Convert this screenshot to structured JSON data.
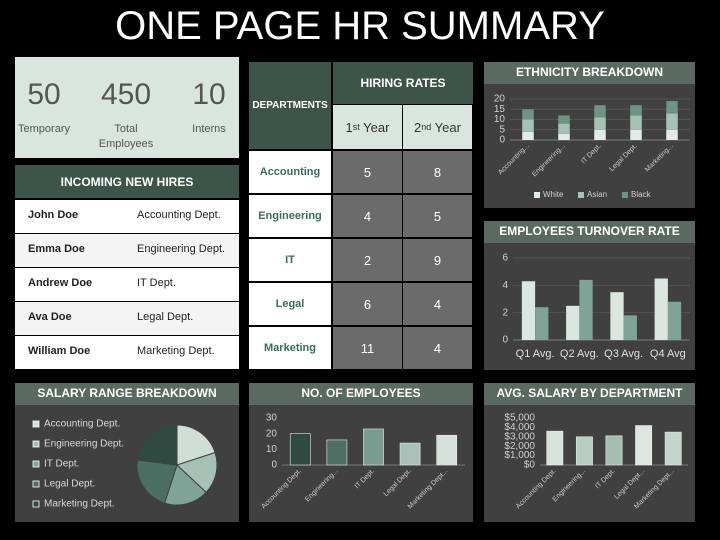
{
  "title": "ONE PAGE HR SUMMARY",
  "stats": [
    {
      "value": 50,
      "label": "Temporary"
    },
    {
      "value": 450,
      "label": "Total Employees"
    },
    {
      "value": 10,
      "label": "Interns"
    }
  ],
  "new_hires": {
    "title": "INCOMING NEW HIRES",
    "rows": [
      [
        "John Doe",
        "Accounting Dept."
      ],
      [
        "Emma Doe",
        "Engineering Dept."
      ],
      [
        "Andrew Doe",
        "IT Dept."
      ],
      [
        "Ava Doe",
        "Legal Dept."
      ],
      [
        "William Doe",
        "Marketing Dept."
      ]
    ]
  },
  "hiring_rates": {
    "title": "HIRING RATES",
    "row_header": "DEPARTMENTS",
    "columns": [
      {
        "base": "1",
        "sup": "st",
        "rest": " Year"
      },
      {
        "base": "2",
        "sup": "nd",
        "rest": " Year"
      }
    ],
    "rows": [
      {
        "department": "Accounting",
        "values": [
          5,
          8
        ]
      },
      {
        "department": "Engineering",
        "values": [
          4,
          5
        ]
      },
      {
        "department": "IT",
        "values": [
          2,
          9
        ]
      },
      {
        "department": "Legal",
        "values": [
          6,
          4
        ]
      },
      {
        "department": "Marketing",
        "values": [
          11,
          4
        ]
      }
    ]
  },
  "chart_data": [
    {
      "type": "bar",
      "title": "ETHNICITY BREAKDOWN",
      "stacked": true,
      "grid": true,
      "legend": "bottom",
      "categories": [
        "Accounting...",
        "Engineering...",
        "IT Dept.",
        "Legal Dept.",
        "Marketing..."
      ],
      "series": [
        {
          "name": "White",
          "color": "#e3ebe7",
          "values": [
            4,
            3,
            5,
            5,
            5
          ]
        },
        {
          "name": "Asian",
          "color": "#a6c2b6",
          "values": [
            6,
            5,
            6,
            7,
            8
          ]
        },
        {
          "name": "Black",
          "color": "#6f9484",
          "values": [
            5,
            4,
            6,
            5,
            6
          ]
        }
      ],
      "ylim": [
        0,
        20
      ],
      "yticks": [
        0,
        5,
        10,
        15,
        20
      ]
    },
    {
      "type": "bar",
      "title": "EMPLOYEES TURNOVER RATE",
      "grid": true,
      "categories": [
        "Q1 Avg.",
        "Q2 Avg.",
        "Q3 Avg.",
        "Q4 Avg"
      ],
      "series": [
        {
          "color": "#dbe6e0",
          "values": [
            4.3,
            2.5,
            3.5,
            4.5
          ]
        },
        {
          "color": "#7fa397",
          "values": [
            2.4,
            4.4,
            1.8,
            2.8
          ]
        }
      ],
      "ylim": [
        0,
        6
      ],
      "yticks": [
        0,
        2,
        4,
        6
      ]
    },
    {
      "type": "pie",
      "title": "SALARY RANGE BREAKDOWN",
      "legend": "left",
      "categories": [
        "Accounting Dept.",
        "Engineering Dept.",
        "IT Dept.",
        "Legal Dept.",
        "Marketing Dept."
      ],
      "values": [
        20,
        17,
        18,
        22,
        23
      ],
      "colors": [
        "#d0ded7",
        "#a6c2b6",
        "#7fa397",
        "#4c6e62",
        "#2f4a40"
      ]
    },
    {
      "type": "bar",
      "title": "NO. OF EMPLOYEES",
      "grid": false,
      "categories": [
        "Accounting Dept.",
        "Engineering...",
        "IT Dept.",
        "Legal Dept.",
        "Marketing Dept..."
      ],
      "values": [
        20,
        16,
        23,
        14,
        19
      ],
      "colors": [
        "#2e4a41",
        "#4f6f64",
        "#7a9c90",
        "#a9c1b8",
        "#d5e0db"
      ],
      "ylim": [
        0,
        30
      ],
      "yticks": [
        0,
        10,
        20,
        30
      ]
    },
    {
      "type": "bar",
      "title": "AVG. SALARY BY DEPARTMENT",
      "grid": false,
      "categories": [
        "Accounting Dept.",
        "Engineering...",
        "IT Dept.",
        "Legal Dept...",
        "Marketing Dept..."
      ],
      "values": [
        3600,
        3000,
        3100,
        4200,
        3500
      ],
      "colors": [
        "#d9e3de",
        "#b9cdc4",
        "#a4bdb2",
        "#dde6e1",
        "#c4d5cd"
      ],
      "ylim": [
        0,
        5000
      ],
      "yticks": [
        {
          "value": 0,
          "label": "$0"
        },
        {
          "value": 1000,
          "label": "$1,000"
        },
        {
          "value": 2000,
          "label": "$2,000"
        },
        {
          "value": 3000,
          "label": "$3,000"
        },
        {
          "value": 4000,
          "label": "$4,000"
        },
        {
          "value": 5000,
          "label": "$5,000"
        }
      ]
    }
  ]
}
